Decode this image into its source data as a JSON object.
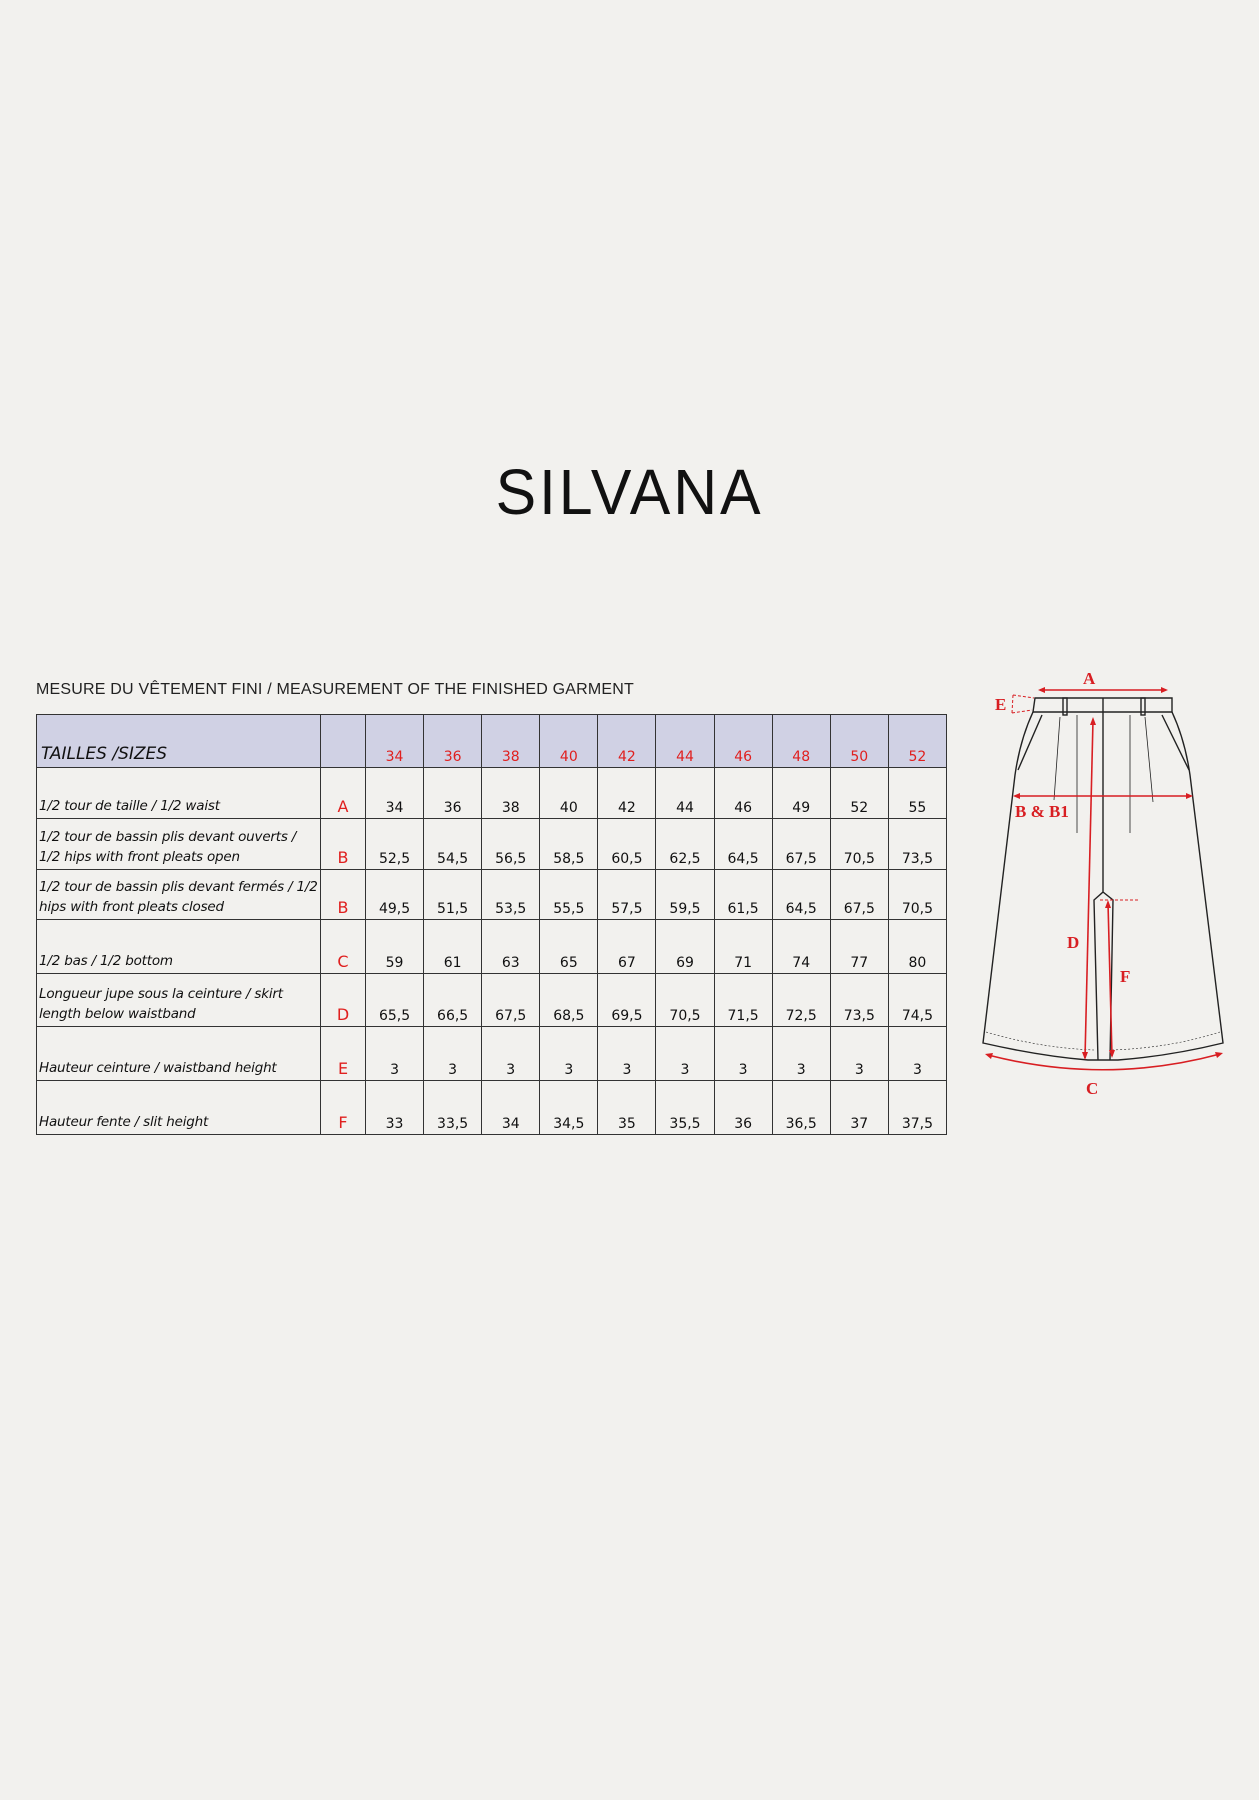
{
  "title": "SILVANA",
  "caption": "MESURE DU VÊTEMENT FINI / MEASUREMENT OF THE FINISHED GARMENT",
  "table": {
    "header_label": "TAILLES /SIZES",
    "sizes": [
      "34",
      "36",
      "38",
      "40",
      "42",
      "44",
      "46",
      "48",
      "50",
      "52"
    ],
    "rows": [
      {
        "label": "1/2 tour de taille  / 1/2 waist",
        "code": "A",
        "values": [
          "34",
          "36",
          "38",
          "40",
          "42",
          "44",
          "46",
          "49",
          "52",
          "55"
        ]
      },
      {
        "label": "1/2 tour de bassin plis devant ouverts / 1/2 hips with front pleats open",
        "code": "B",
        "values": [
          "52,5",
          "54,5",
          "56,5",
          "58,5",
          "60,5",
          "62,5",
          "64,5",
          "67,5",
          "70,5",
          "73,5"
        ]
      },
      {
        "label": "1/2 tour de bassin plis devant fermés / 1/2 hips with front pleats closed",
        "code": "B",
        "values": [
          "49,5",
          "51,5",
          "53,5",
          "55,5",
          "57,5",
          "59,5",
          "61,5",
          "64,5",
          "67,5",
          "70,5"
        ]
      },
      {
        "label": "1/2 bas / 1/2 bottom",
        "code": "C",
        "values": [
          "59",
          "61",
          "63",
          "65",
          "67",
          "69",
          "71",
          "74",
          "77",
          "80"
        ]
      },
      {
        "label": "Longueur jupe sous la ceinture / skirt length below waistband",
        "code": "D",
        "values": [
          "65,5",
          "66,5",
          "67,5",
          "68,5",
          "69,5",
          "70,5",
          "71,5",
          "72,5",
          "73,5",
          "74,5"
        ]
      },
      {
        "label": "Hauteur ceinture / waistband height",
        "code": "E",
        "values": [
          "3",
          "3",
          "3",
          "3",
          "3",
          "3",
          "3",
          "3",
          "3",
          "3"
        ]
      },
      {
        "label": "Hauteur fente  / slit height",
        "code": "F",
        "values": [
          "33",
          "33,5",
          "34",
          "34,5",
          "35",
          "35,5",
          "36",
          "36,5",
          "37",
          "37,5"
        ]
      }
    ]
  },
  "diagram": {
    "labels": {
      "A": "A",
      "B": "B & B1",
      "C": "C",
      "D": "D",
      "E": "E",
      "F": "F"
    }
  },
  "colors": {
    "accent": "#e0201f",
    "header_bg": "#d0d1e4",
    "background": "#f2f1ee"
  }
}
